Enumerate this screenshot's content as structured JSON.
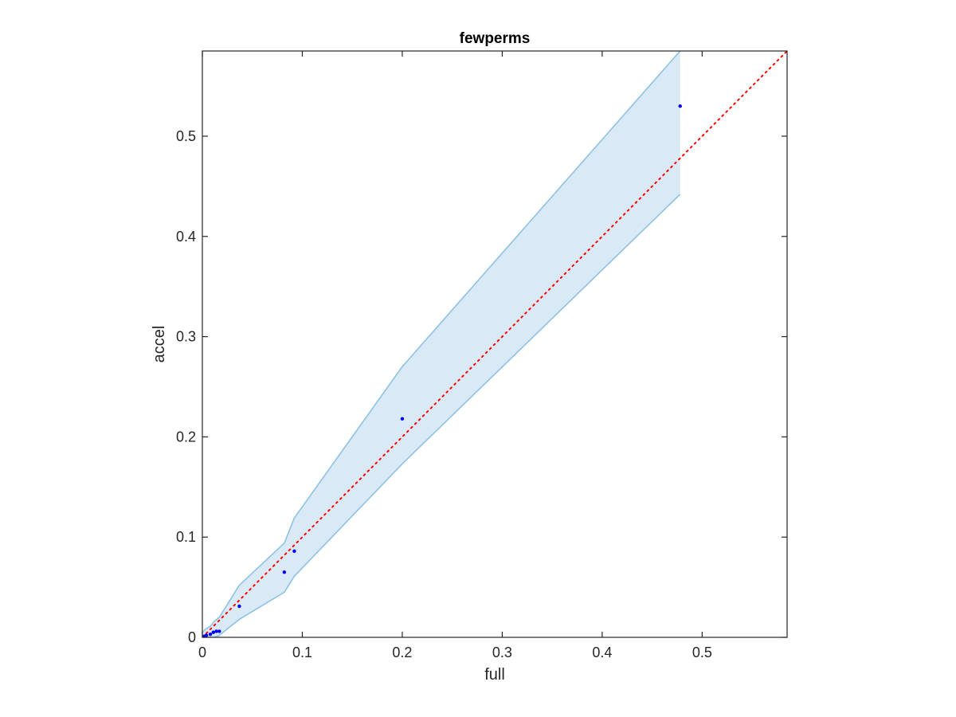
{
  "chart_data": {
    "type": "scatter",
    "title": "fewperms",
    "xlabel": "full",
    "ylabel": "accel",
    "xlim": [
      0,
      0.585
    ],
    "ylim": [
      0,
      0.585
    ],
    "xticks": [
      0,
      0.1,
      0.2,
      0.3,
      0.4,
      0.5
    ],
    "yticks": [
      0,
      0.1,
      0.2,
      0.3,
      0.4,
      0.5
    ],
    "xtick_labels": [
      "0",
      "0.1",
      "0.2",
      "0.3",
      "0.4",
      "0.5"
    ],
    "ytick_labels": [
      "0",
      "0.1",
      "0.2",
      "0.3",
      "0.4",
      "0.5"
    ],
    "grid": false,
    "points": {
      "color": "#0000ff",
      "x": [
        0.0,
        0.002,
        0.004,
        0.008,
        0.011,
        0.014,
        0.017,
        0.037,
        0.082,
        0.092,
        0.2,
        0.478
      ],
      "y": [
        0.0,
        0.001,
        0.002,
        0.003,
        0.005,
        0.006,
        0.006,
        0.031,
        0.065,
        0.086,
        0.218,
        0.53
      ]
    },
    "confidence_band": {
      "fill_color": "#d9e9f5",
      "edge_color": "#8ec2e3",
      "x": [
        0.0,
        0.003,
        0.008,
        0.012,
        0.017,
        0.037,
        0.082,
        0.092,
        0.2,
        0.478
      ],
      "upper": [
        0.005,
        0.008,
        0.011,
        0.016,
        0.02,
        0.052,
        0.094,
        0.119,
        0.27,
        0.585
      ],
      "lower": [
        0.0,
        0.0,
        0.0,
        0.0,
        0.002,
        0.018,
        0.045,
        0.061,
        0.173,
        0.442
      ]
    },
    "reference_line": {
      "style": "dotted",
      "color": "#ff0000",
      "x": [
        0,
        0.585
      ],
      "y": [
        0,
        0.585
      ]
    }
  }
}
